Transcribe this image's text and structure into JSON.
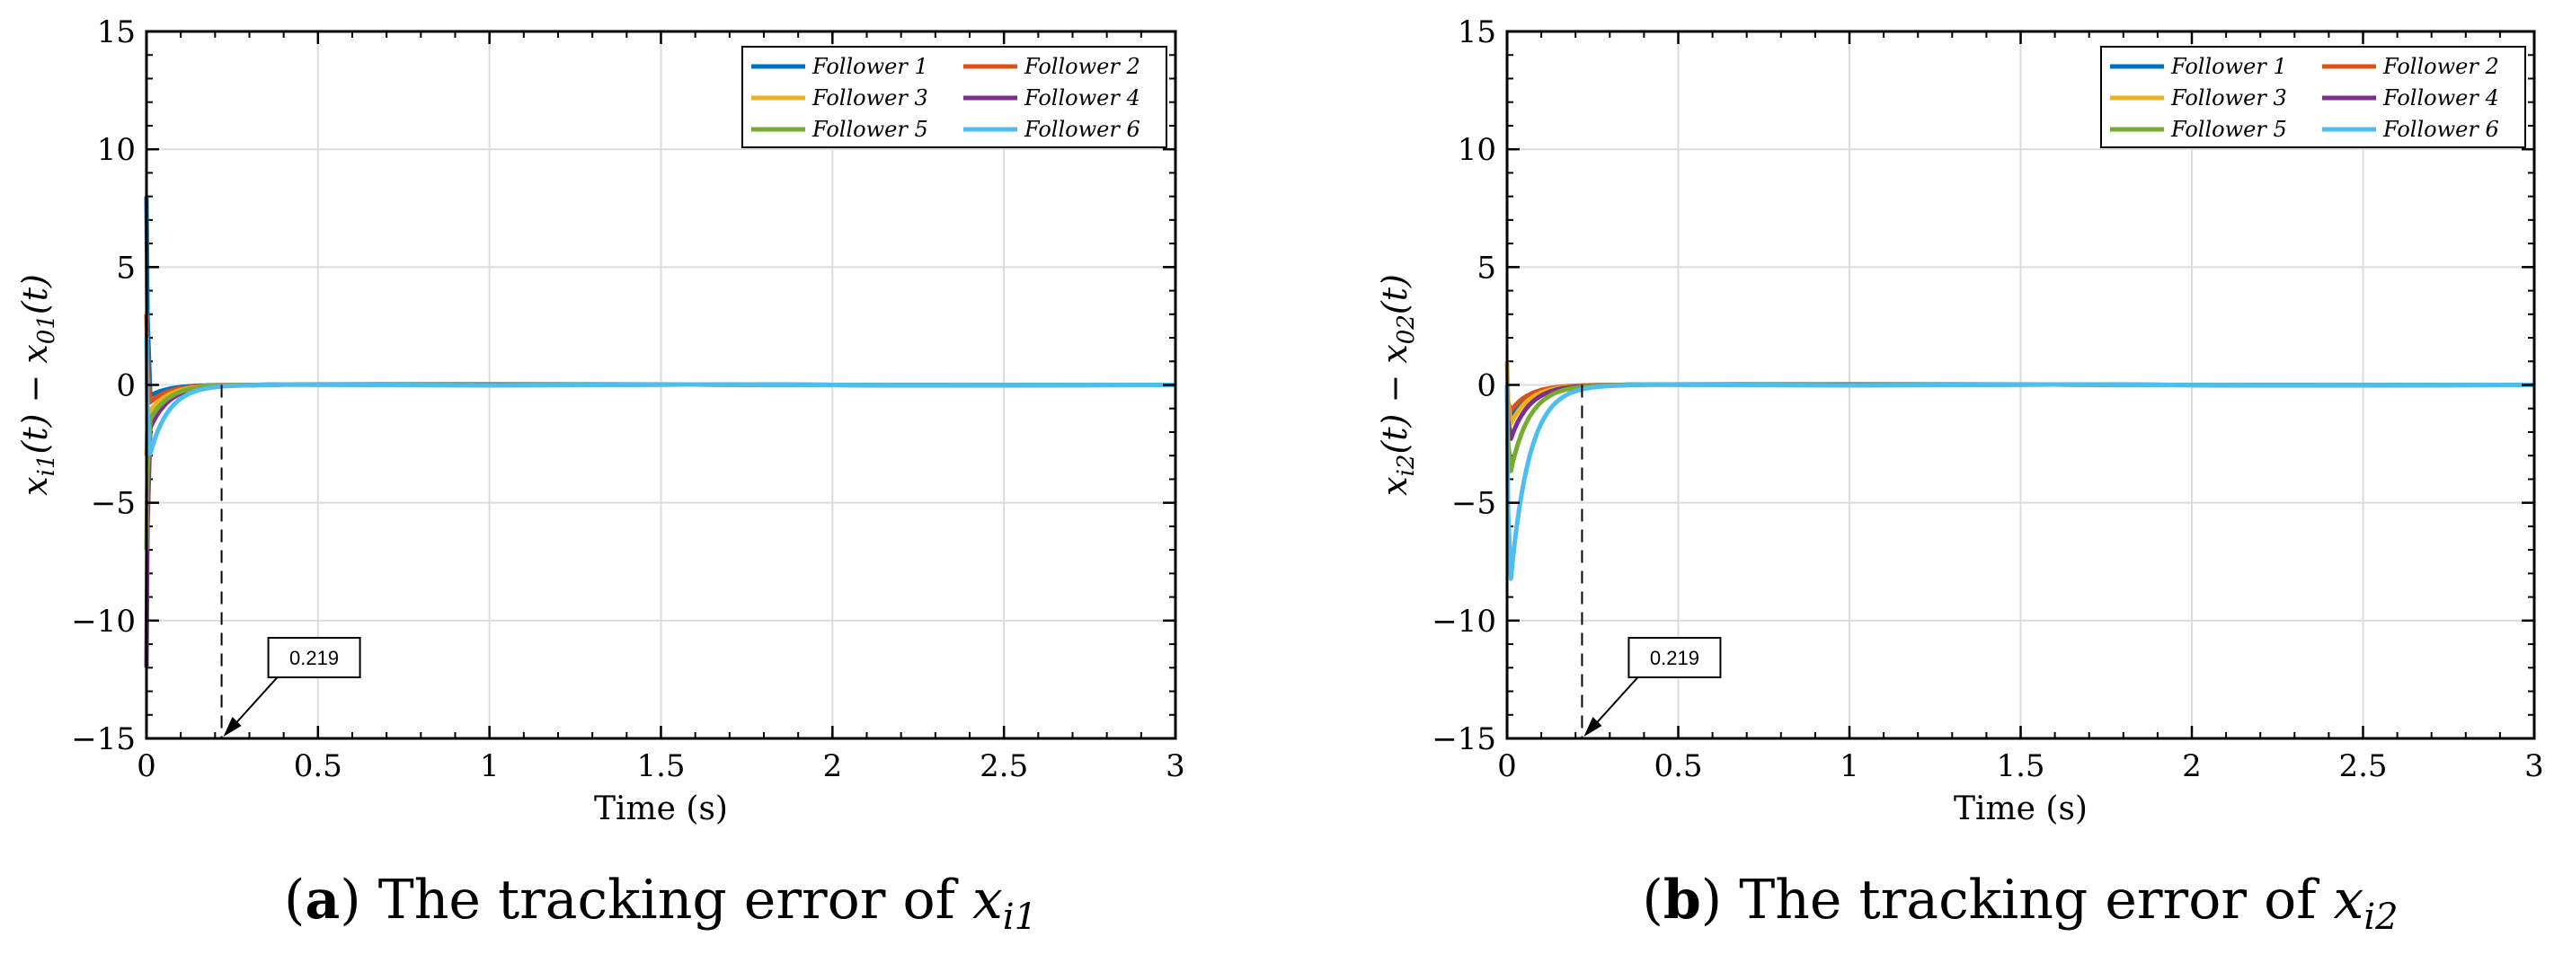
{
  "colors": {
    "follower1": "#0072BD",
    "follower2": "#D95319",
    "follower3": "#EDB120",
    "follower4": "#7E2F8E",
    "follower5": "#77AC30",
    "follower6": "#4DBEEE",
    "grid": "#dcdcdc",
    "axis": "#000000"
  },
  "chart_data": [
    {
      "type": "line",
      "caption_letter": "a",
      "caption_text": "The tracking error of",
      "caption_var": "x",
      "caption_sub": "i1",
      "xlabel": "Time (s)",
      "ylabel": "x_i1(t) − x_01(t)",
      "ylabel_parts": {
        "a": "x",
        "asub": "i1",
        "b": "(t) − ",
        "c": "x",
        "csub": "01",
        "d": "(t)"
      },
      "xlim": [
        0,
        3
      ],
      "ylim": [
        -15,
        15
      ],
      "xticks": [
        0,
        0.5,
        1,
        1.5,
        2,
        2.5,
        3
      ],
      "xtick_labels": [
        "0",
        "0.5",
        "1",
        "1.5",
        "2",
        "2.5",
        "3"
      ],
      "yticks": [
        -15,
        -10,
        -5,
        0,
        5,
        10,
        15
      ],
      "ytick_labels": [
        "−15",
        "−10",
        "−5",
        "0",
        "5",
        "10",
        "15"
      ],
      "grid": true,
      "legend": "top-right",
      "legend_entries": [
        "Follower 1",
        "Follower 2",
        "Follower 3",
        "Follower 4",
        "Follower 5",
        "Follower 6"
      ],
      "series": [
        {
          "name": "Follower 1",
          "initial": 8,
          "undershoot": -0.5
        },
        {
          "name": "Follower 2",
          "initial": 3,
          "undershoot": -0.8
        },
        {
          "name": "Follower 3",
          "initial": -3,
          "undershoot": -1.2
        },
        {
          "name": "Follower 4",
          "initial": -12,
          "undershoot": -2.0
        },
        {
          "name": "Follower 5",
          "initial": -7,
          "undershoot": -1.6
        },
        {
          "name": "Follower 6",
          "initial": 2,
          "undershoot": -3.2
        }
      ],
      "annotation": {
        "label": "0.219",
        "x": 0.219
      }
    },
    {
      "type": "line",
      "caption_letter": "b",
      "caption_text": "The tracking error of",
      "caption_var": "x",
      "caption_sub": "i2",
      "xlabel": "Time (s)",
      "ylabel": "x_i2(t) − x_02(t)",
      "ylabel_parts": {
        "a": "x",
        "asub": "i2",
        "b": "(t) − ",
        "c": "x",
        "csub": "02",
        "d": "(t)"
      },
      "xlim": [
        0,
        3
      ],
      "ylim": [
        -15,
        15
      ],
      "xticks": [
        0,
        0.5,
        1,
        1.5,
        2,
        2.5,
        3
      ],
      "xtick_labels": [
        "0",
        "0.5",
        "1",
        "1.5",
        "2",
        "2.5",
        "3"
      ],
      "yticks": [
        -15,
        -10,
        -5,
        0,
        5,
        10,
        15
      ],
      "ytick_labels": [
        "−15",
        "−10",
        "−5",
        "0",
        "5",
        "10",
        "15"
      ],
      "grid": true,
      "legend": "top-right",
      "legend_entries": [
        "Follower 1",
        "Follower 2",
        "Follower 3",
        "Follower 4",
        "Follower 5",
        "Follower 6"
      ],
      "series": [
        {
          "name": "Follower 1",
          "initial": 0,
          "undershoot": -1.5
        },
        {
          "name": "Follower 2",
          "initial": 0,
          "undershoot": -1.2
        },
        {
          "name": "Follower 3",
          "initial": 1,
          "undershoot": -1.8
        },
        {
          "name": "Follower 4",
          "initial": 0,
          "undershoot": -2.5
        },
        {
          "name": "Follower 5",
          "initial": 0,
          "undershoot": -4.0
        },
        {
          "name": "Follower 6",
          "initial": 0,
          "undershoot": -9.0
        }
      ],
      "annotation": {
        "label": "0.219",
        "x": 0.219
      }
    }
  ]
}
